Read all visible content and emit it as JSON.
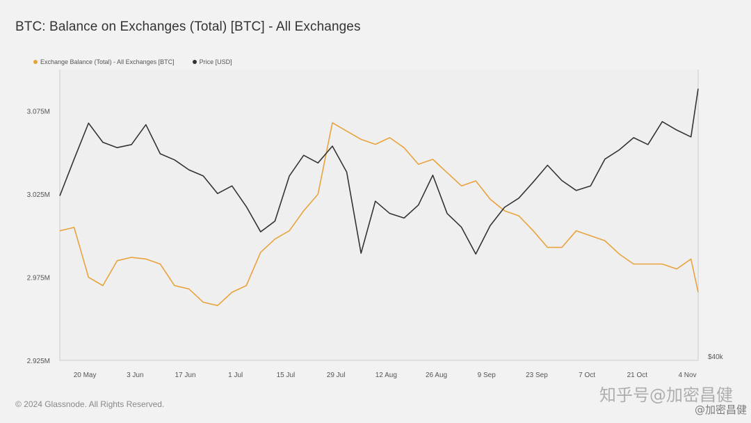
{
  "title": "BTC: Balance on Exchanges (Total) [BTC] - All Exchanges",
  "footer": "© 2024 Glassnode. All Rights Reserved.",
  "watermark": "知乎号@加密昌健",
  "watermark_small": "@加密昌健",
  "chart_data": {
    "type": "line",
    "title": "BTC: Balance on Exchanges (Total) [BTC] - All Exchanges",
    "legend_position": "top-left",
    "grid": false,
    "x_ticks": [
      "20 May",
      "3 Jun",
      "17 Jun",
      "1 Jul",
      "15 Jul",
      "29 Jul",
      "12 Aug",
      "26 Aug",
      "9 Sep",
      "23 Sep",
      "7 Oct",
      "21 Oct",
      "4 Nov"
    ],
    "x_range": [
      "2024-05-13",
      "2024-11-07"
    ],
    "y_left": {
      "ticks": [
        "3.075M",
        "3.025M",
        "2.975M",
        "2.925M"
      ],
      "tick_values": [
        3075000,
        3025000,
        2975000,
        2925000
      ],
      "range": [
        2925000,
        3100000
      ]
    },
    "y_right": {
      "ticks": [
        "$40k"
      ],
      "tick_values": [
        40000
      ]
    },
    "series": [
      {
        "name": "Exchange Balance (Total) - All Exchanges [BTC]",
        "color": "#e8a33d",
        "axis": "left",
        "x": [
          "2024-05-13",
          "2024-05-17",
          "2024-05-21",
          "2024-05-25",
          "2024-05-29",
          "2024-06-02",
          "2024-06-06",
          "2024-06-10",
          "2024-06-14",
          "2024-06-18",
          "2024-06-22",
          "2024-06-26",
          "2024-06-30",
          "2024-07-04",
          "2024-07-08",
          "2024-07-12",
          "2024-07-16",
          "2024-07-20",
          "2024-07-24",
          "2024-07-28",
          "2024-08-01",
          "2024-08-05",
          "2024-08-09",
          "2024-08-13",
          "2024-08-17",
          "2024-08-21",
          "2024-08-25",
          "2024-08-29",
          "2024-09-02",
          "2024-09-06",
          "2024-09-10",
          "2024-09-14",
          "2024-09-18",
          "2024-09-22",
          "2024-09-26",
          "2024-09-30",
          "2024-10-04",
          "2024-10-08",
          "2024-10-12",
          "2024-10-16",
          "2024-10-20",
          "2024-10-24",
          "2024-10-28",
          "2024-11-01",
          "2024-11-05",
          "2024-11-07"
        ],
        "values": [
          3003000,
          3005000,
          2975000,
          2970000,
          2985000,
          2987000,
          2986000,
          2983000,
          2970000,
          2968000,
          2960000,
          2958000,
          2966000,
          2970000,
          2990000,
          2998000,
          3003000,
          3015000,
          3025000,
          3068000,
          3063000,
          3058000,
          3055000,
          3059000,
          3053000,
          3043000,
          3046000,
          3038000,
          3030000,
          3033000,
          3022000,
          3015000,
          3012000,
          3003000,
          2993000,
          2993000,
          3003000,
          3000000,
          2997000,
          2989000,
          2983000,
          2983000,
          2983000,
          2980000,
          2986000,
          2966000
        ]
      },
      {
        "name": "Price [USD]",
        "color": "#333333",
        "axis": "right",
        "x": [
          "2024-05-13",
          "2024-05-17",
          "2024-05-21",
          "2024-05-25",
          "2024-05-29",
          "2024-06-02",
          "2024-06-06",
          "2024-06-10",
          "2024-06-14",
          "2024-06-18",
          "2024-06-22",
          "2024-06-26",
          "2024-06-30",
          "2024-07-04",
          "2024-07-08",
          "2024-07-12",
          "2024-07-16",
          "2024-07-20",
          "2024-07-24",
          "2024-07-28",
          "2024-08-01",
          "2024-08-05",
          "2024-08-09",
          "2024-08-13",
          "2024-08-17",
          "2024-08-21",
          "2024-08-25",
          "2024-08-29",
          "2024-09-02",
          "2024-09-06",
          "2024-09-10",
          "2024-09-14",
          "2024-09-18",
          "2024-09-22",
          "2024-09-26",
          "2024-09-30",
          "2024-10-04",
          "2024-10-08",
          "2024-10-12",
          "2024-10-16",
          "2024-10-20",
          "2024-10-24",
          "2024-10-28",
          "2024-11-01",
          "2024-11-05",
          "2024-11-07"
        ],
        "values": [
          61500,
          66300,
          71000,
          68500,
          67800,
          68200,
          70800,
          67000,
          66200,
          64900,
          64100,
          61800,
          62800,
          60100,
          56800,
          58200,
          64100,
          66800,
          65800,
          68000,
          64600,
          54000,
          60800,
          59200,
          58600,
          60300,
          64200,
          59200,
          57400,
          53900,
          57600,
          60000,
          61200,
          63300,
          65500,
          63500,
          62200,
          62800,
          66300,
          67500,
          69100,
          68200,
          71200,
          70100,
          69200,
          75500
        ]
      }
    ]
  }
}
